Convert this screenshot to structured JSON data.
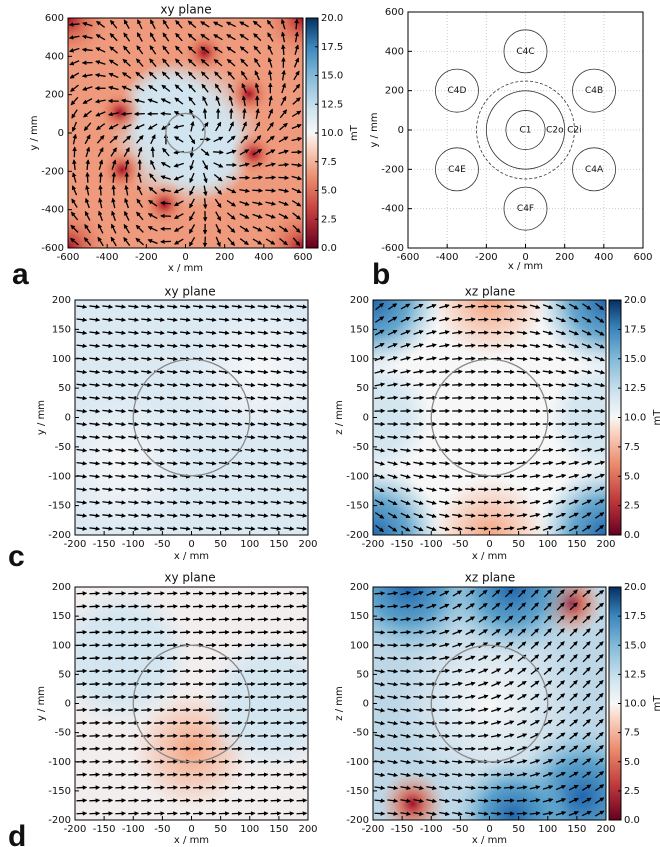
{
  "panel_labels": [
    "a",
    "b",
    "c",
    "d"
  ],
  "chart_data": [
    {
      "type": "heatmap",
      "title": "xy plane",
      "xlabel": "x / mm",
      "ylabel": "y / mm",
      "xlim": [
        -600,
        600
      ],
      "ylim": [
        -600,
        600
      ],
      "xticks": [
        -600,
        -400,
        -200,
        0,
        200,
        400,
        600
      ],
      "yticks": [
        -600,
        -400,
        -200,
        0,
        200,
        400,
        600
      ],
      "circles": [
        {
          "x": 0,
          "y": 0,
          "r": 100
        }
      ],
      "colorbar": {
        "label": "mT",
        "lim": [
          0,
          20
        ],
        "ticks": [
          {
            "value": 0,
            "label": "0.0"
          },
          {
            "value": 2.5,
            "label": "2.5"
          },
          {
            "value": 5,
            "label": "5.0"
          },
          {
            "value": 7.5,
            "label": "7.5"
          },
          {
            "value": 10,
            "label": "10.0"
          },
          {
            "value": 12.5,
            "label": "12.5"
          },
          {
            "value": 15,
            "label": "15.0"
          },
          {
            "value": 17.5,
            "label": "17.5"
          },
          {
            "value": 20,
            "label": "20.0"
          }
        ]
      }
    },
    {
      "type": "layout",
      "xlabel": "x / mm",
      "ylabel": "y / mm",
      "xlim": [
        -600,
        600
      ],
      "ylim": [
        -600,
        600
      ],
      "grid": true,
      "xticks": [
        -600,
        -400,
        -200,
        0,
        200,
        400,
        600
      ],
      "yticks": [
        -600,
        -400,
        -200,
        0,
        200,
        400,
        600
      ],
      "circles": [
        {
          "label": "C1",
          "x": 0,
          "y": 0,
          "r": 100
        },
        {
          "label": "C2o",
          "x": 0,
          "y": 0,
          "r": 200
        },
        {
          "label": "C2i",
          "x": 0,
          "y": 0,
          "r": 250,
          "dashed": true
        },
        {
          "label": "C4A",
          "x": 350,
          "y": -200,
          "r": 110
        },
        {
          "label": "C4B",
          "x": 350,
          "y": 200,
          "r": 110
        },
        {
          "label": "C4C",
          "x": 0,
          "y": 400,
          "r": 110
        },
        {
          "label": "C4D",
          "x": -350,
          "y": 200,
          "r": 110
        },
        {
          "label": "C4E",
          "x": -350,
          "y": -200,
          "r": 110
        },
        {
          "label": "C4F",
          "x": 0,
          "y": -400,
          "r": 110
        }
      ]
    },
    {
      "type": "heatmap",
      "title": "xy plane",
      "xlabel": "x / mm",
      "ylabel": "y / mm",
      "xlim": [
        -200,
        200
      ],
      "ylim": [
        -200,
        200
      ],
      "xticks": [
        -200,
        -150,
        -100,
        -50,
        0,
        50,
        100,
        150,
        200
      ],
      "yticks": [
        -200,
        -150,
        -100,
        -50,
        0,
        50,
        100,
        150,
        200
      ],
      "circles": [
        {
          "x": 0,
          "y": 0,
          "r": 100
        }
      ]
    },
    {
      "type": "heatmap",
      "title": "xz plane",
      "xlabel": "x / mm",
      "ylabel": "z / mm",
      "xlim": [
        -200,
        200
      ],
      "ylim": [
        -200,
        200
      ],
      "xticks": [
        -200,
        -150,
        -100,
        -50,
        0,
        50,
        100,
        150,
        200
      ],
      "yticks": [
        -200,
        -150,
        -100,
        -50,
        0,
        50,
        100,
        150,
        200
      ],
      "circles": [
        {
          "x": 0,
          "y": 0,
          "r": 100
        }
      ],
      "colorbar": {
        "label": "mT",
        "lim": [
          0,
          20
        ],
        "ticks": [
          {
            "value": 0,
            "label": "0.0"
          },
          {
            "value": 2.5,
            "label": "2.5"
          },
          {
            "value": 5,
            "label": "5.0"
          },
          {
            "value": 7.5,
            "label": "7.5"
          },
          {
            "value": 10,
            "label": "10.0"
          },
          {
            "value": 12.5,
            "label": "12.5"
          },
          {
            "value": 15,
            "label": "15.0"
          },
          {
            "value": 17.5,
            "label": "17.5"
          },
          {
            "value": 20,
            "label": "20.0"
          }
        ]
      }
    },
    {
      "type": "heatmap",
      "title": "xy plane",
      "xlabel": "x / mm",
      "ylabel": "y / mm",
      "xlim": [
        -200,
        200
      ],
      "ylim": [
        -200,
        200
      ],
      "xticks": [
        -200,
        -150,
        -100,
        -50,
        0,
        50,
        100,
        150,
        200
      ],
      "yticks": [
        -200,
        -150,
        -100,
        -50,
        0,
        50,
        100,
        150,
        200
      ],
      "circles": [
        {
          "x": 0,
          "y": 0,
          "r": 100
        }
      ]
    },
    {
      "type": "heatmap",
      "title": "xz plane",
      "xlabel": "x / mm",
      "ylabel": "z / mm",
      "xlim": [
        -200,
        200
      ],
      "ylim": [
        -200,
        200
      ],
      "xticks": [
        -200,
        -150,
        -100,
        -50,
        0,
        50,
        100,
        150,
        200
      ],
      "yticks": [
        -200,
        -150,
        -100,
        -50,
        0,
        50,
        100,
        150,
        200
      ],
      "circles": [
        {
          "x": 0,
          "y": 0,
          "r": 100
        }
      ],
      "colorbar": {
        "label": "mT",
        "lim": [
          0,
          20
        ],
        "ticks": [
          {
            "value": 0,
            "label": "0.0"
          },
          {
            "value": 2.5,
            "label": "2.5"
          },
          {
            "value": 5,
            "label": "5.0"
          },
          {
            "value": 7.5,
            "label": "7.5"
          },
          {
            "value": 10,
            "label": "10.0"
          },
          {
            "value": 12.5,
            "label": "12.5"
          },
          {
            "value": 15,
            "label": "15.0"
          },
          {
            "value": 17.5,
            "label": "17.5"
          },
          {
            "value": 20,
            "label": "20.0"
          }
        ]
      }
    }
  ]
}
